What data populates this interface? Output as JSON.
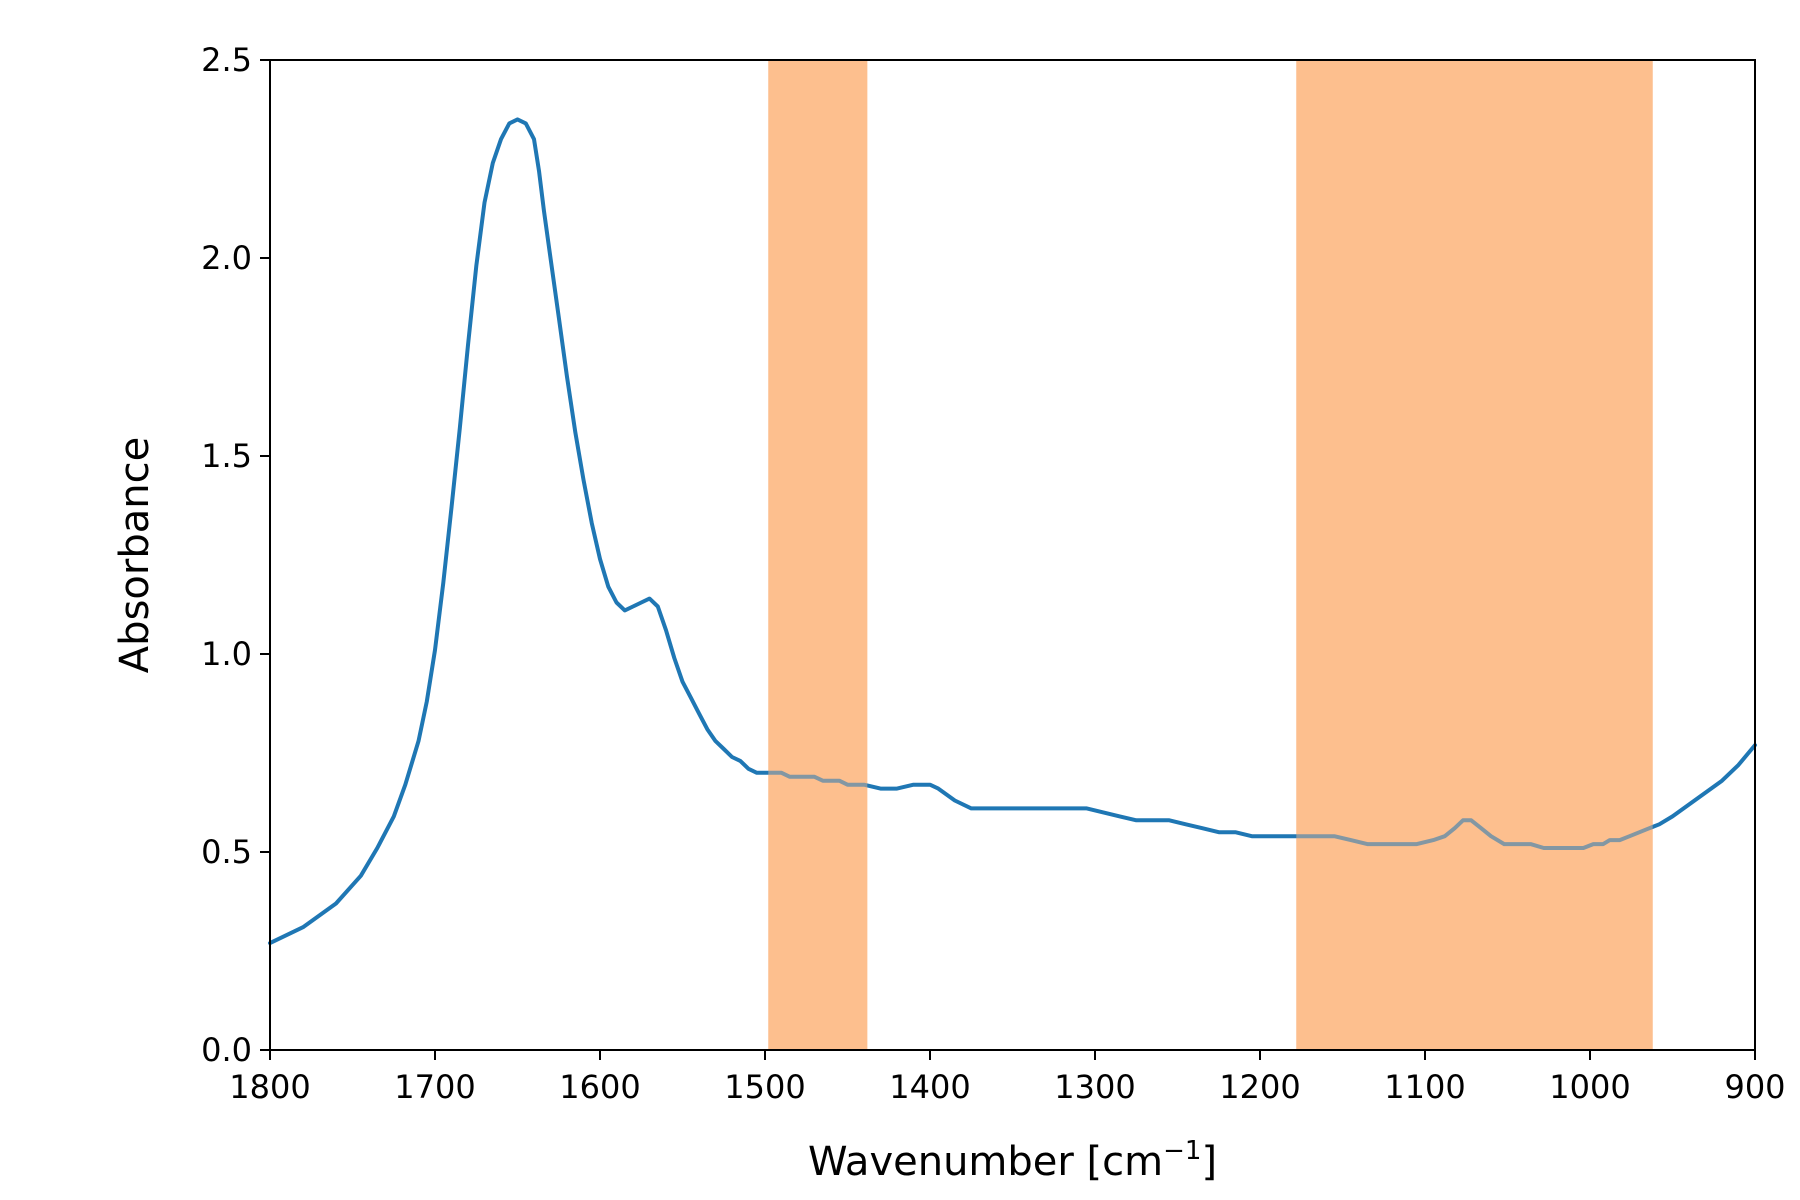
{
  "chart_data": {
    "type": "line",
    "title": "",
    "xlabel": "Wavenumber [cm",
    "xlabel_superscript": "−1",
    "xlabel_suffix": "]",
    "ylabel": "Absorbance",
    "xlim": [
      1800,
      900
    ],
    "ylim": [
      0.0,
      2.5
    ],
    "x_ticks": [
      1800,
      1700,
      1600,
      1500,
      1400,
      1300,
      1200,
      1100,
      1000,
      900
    ],
    "y_ticks": [
      0.0,
      0.5,
      1.0,
      1.5,
      2.0,
      2.5
    ],
    "y_tick_labels": [
      "0.0",
      "0.5",
      "1.0",
      "1.5",
      "2.0",
      "2.5"
    ],
    "grid": false,
    "highlight_regions": [
      {
        "x_start": 1498,
        "x_end": 1438,
        "color": "#fdbf8f"
      },
      {
        "x_start": 1178,
        "x_end": 962,
        "color": "#fdbf8f"
      }
    ],
    "series": [
      {
        "color": "#1f77b4",
        "x": [
          1800,
          1780,
          1760,
          1745,
          1735,
          1725,
          1718,
          1710,
          1705,
          1700,
          1695,
          1690,
          1685,
          1680,
          1675,
          1670,
          1665,
          1660,
          1655,
          1650,
          1645,
          1640,
          1637,
          1634,
          1630,
          1625,
          1620,
          1615,
          1610,
          1605,
          1600,
          1595,
          1590,
          1585,
          1580,
          1575,
          1570,
          1565,
          1560,
          1555,
          1550,
          1545,
          1540,
          1535,
          1530,
          1525,
          1520,
          1515,
          1510,
          1505,
          1500,
          1495,
          1490,
          1485,
          1480,
          1475,
          1470,
          1465,
          1460,
          1455,
          1450,
          1440,
          1430,
          1420,
          1410,
          1400,
          1395,
          1385,
          1375,
          1365,
          1355,
          1345,
          1335,
          1325,
          1315,
          1305,
          1295,
          1285,
          1275,
          1265,
          1255,
          1245,
          1235,
          1225,
          1215,
          1205,
          1195,
          1185,
          1175,
          1165,
          1155,
          1145,
          1135,
          1125,
          1115,
          1105,
          1095,
          1088,
          1082,
          1077,
          1072,
          1066,
          1060,
          1052,
          1044,
          1036,
          1028,
          1020,
          1012,
          1004,
          998,
          992,
          988,
          982,
          976,
          970,
          964,
          958,
          950,
          940,
          930,
          920,
          910,
          900
        ],
        "y": [
          0.27,
          0.31,
          0.37,
          0.44,
          0.51,
          0.59,
          0.67,
          0.78,
          0.88,
          1.01,
          1.18,
          1.37,
          1.57,
          1.78,
          1.98,
          2.14,
          2.24,
          2.3,
          2.34,
          2.35,
          2.34,
          2.3,
          2.22,
          2.12,
          2.0,
          1.85,
          1.7,
          1.56,
          1.44,
          1.33,
          1.24,
          1.17,
          1.13,
          1.11,
          1.12,
          1.13,
          1.14,
          1.12,
          1.06,
          0.99,
          0.93,
          0.89,
          0.85,
          0.81,
          0.78,
          0.76,
          0.74,
          0.73,
          0.71,
          0.7,
          0.7,
          0.7,
          0.7,
          0.69,
          0.69,
          0.69,
          0.69,
          0.68,
          0.68,
          0.68,
          0.67,
          0.67,
          0.66,
          0.66,
          0.67,
          0.67,
          0.66,
          0.63,
          0.61,
          0.61,
          0.61,
          0.61,
          0.61,
          0.61,
          0.61,
          0.61,
          0.6,
          0.59,
          0.58,
          0.58,
          0.58,
          0.57,
          0.56,
          0.55,
          0.55,
          0.54,
          0.54,
          0.54,
          0.54,
          0.54,
          0.54,
          0.53,
          0.52,
          0.52,
          0.52,
          0.52,
          0.53,
          0.54,
          0.56,
          0.58,
          0.58,
          0.56,
          0.54,
          0.52,
          0.52,
          0.52,
          0.51,
          0.51,
          0.51,
          0.51,
          0.52,
          0.52,
          0.53,
          0.53,
          0.54,
          0.55,
          0.56,
          0.57,
          0.59,
          0.62,
          0.65,
          0.68,
          0.72,
          0.77
        ]
      }
    ]
  }
}
